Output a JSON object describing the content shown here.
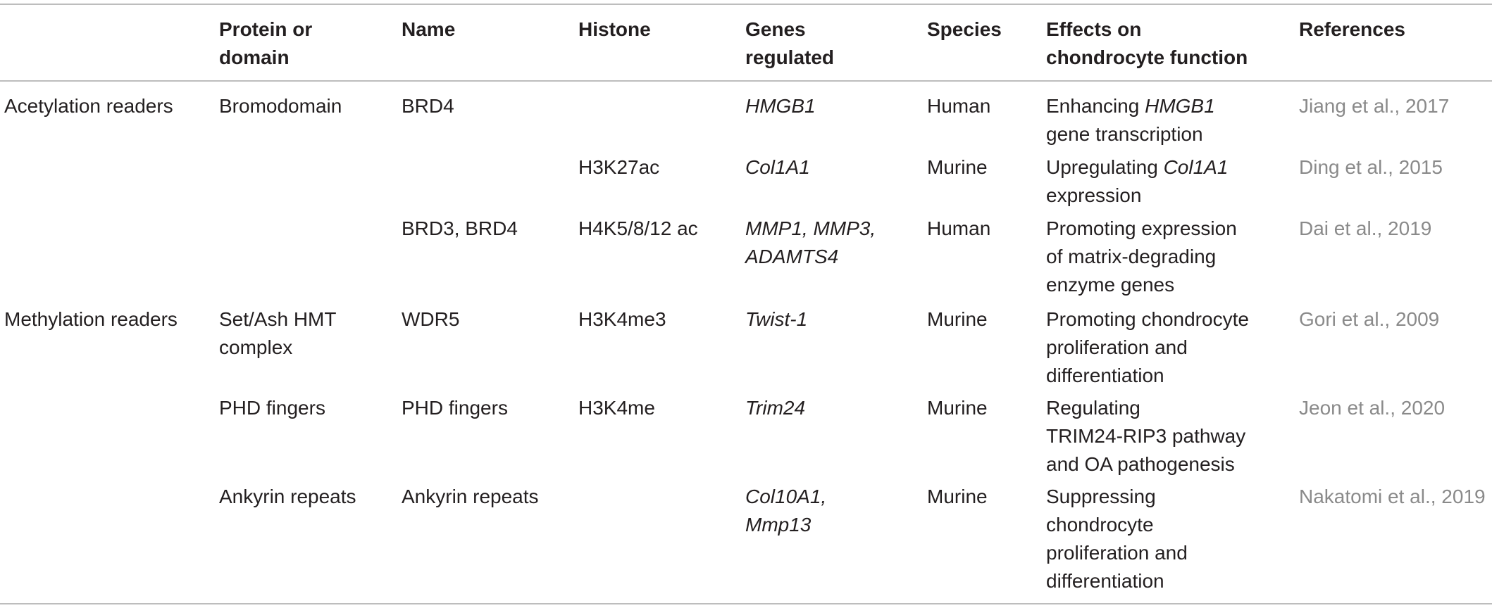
{
  "headers": [
    "",
    "Protein or\ndomain",
    "Name",
    "Histone",
    "Genes\nregulated",
    "Species",
    "Effects on\nchondrocyte function",
    "References"
  ],
  "rows": [
    {
      "category": "Acetylation readers",
      "protein": "Bromodomain",
      "name": "BRD4",
      "histone": "",
      "genes": "HMGB1",
      "species": "Human",
      "effects": [
        "Enhancing ",
        "HMGB1",
        "\ngene transcription"
      ],
      "reference": "Jiang et al., 2017"
    },
    {
      "category": "",
      "protein": "",
      "name": "",
      "histone": "H3K27ac",
      "genes": "Col1A1",
      "species": "Murine",
      "effects": [
        "Upregulating ",
        "Col1A1",
        "\nexpression"
      ],
      "reference": "Ding et al., 2015"
    },
    {
      "category": "",
      "protein": "",
      "name": "BRD3, BRD4",
      "histone": "H4K5/8/12 ac",
      "genes": "MMP1, MMP3,\nADAMTS4",
      "species": "Human",
      "effects": [
        "Promoting expression\nof matrix-degrading\nenzyme genes"
      ],
      "reference": "Dai et al., 2019"
    },
    {
      "category": "Methylation readers",
      "protein": "Set/Ash HMT\ncomplex",
      "name": "WDR5",
      "histone": "H3K4me3",
      "genes": "Twist-1",
      "species": "Murine",
      "effects": [
        "Promoting chondrocyte\nproliferation and\ndifferentiation"
      ],
      "reference": "Gori et al., 2009"
    },
    {
      "category": "",
      "protein": "PHD fingers",
      "name": "PHD fingers",
      "histone": "H3K4me",
      "genes": "Trim24",
      "species": "Murine",
      "effects": [
        "Regulating\nTRIM24-RIP3 pathway\nand OA pathogenesis"
      ],
      "reference": "Jeon et al., 2020"
    },
    {
      "category": "",
      "protein": "Ankyrin repeats",
      "name": "Ankyrin repeats",
      "histone": "",
      "genes": "Col10A1,\nMmp13",
      "species": "Murine",
      "effects": [
        "Suppressing\nchondrocyte\nproliferation and\ndifferentiation"
      ],
      "reference": "Nakatomi et al., 2019"
    }
  ]
}
